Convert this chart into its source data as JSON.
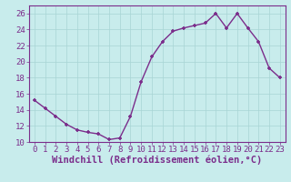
{
  "hours": [
    0,
    1,
    2,
    3,
    4,
    5,
    6,
    7,
    8,
    9,
    10,
    11,
    12,
    13,
    14,
    15,
    16,
    17,
    18,
    19,
    20,
    21,
    22,
    23
  ],
  "temps": [
    15.2,
    14.2,
    13.2,
    12.2,
    11.5,
    11.2,
    11.0,
    10.3,
    10.5,
    13.2,
    17.5,
    20.6,
    22.5,
    23.8,
    24.2,
    24.5,
    24.8,
    26.0,
    24.2,
    26.0,
    24.2,
    22.5,
    19.2,
    18.0
  ],
  "line_color": "#7b2d8b",
  "marker": "P",
  "bg_color": "#c8ecec",
  "grid_color": "#a8d4d4",
  "xlabel": "Windchill (Refroidissement éolien,°C)",
  "ylim": [
    10,
    27
  ],
  "xlim": [
    -0.5,
    23.5
  ],
  "yticks": [
    10,
    12,
    14,
    16,
    18,
    20,
    22,
    24,
    26
  ],
  "xticks": [
    0,
    1,
    2,
    3,
    4,
    5,
    6,
    7,
    8,
    9,
    10,
    11,
    12,
    13,
    14,
    15,
    16,
    17,
    18,
    19,
    20,
    21,
    22,
    23
  ],
  "tick_color": "#7b2d8b",
  "xlabel_color": "#7b2d8b",
  "xlabel_fontsize": 7.5,
  "tick_fontsize": 6.5,
  "spine_color": "#7b2d8b",
  "line_width": 1.0,
  "marker_size": 3.5
}
